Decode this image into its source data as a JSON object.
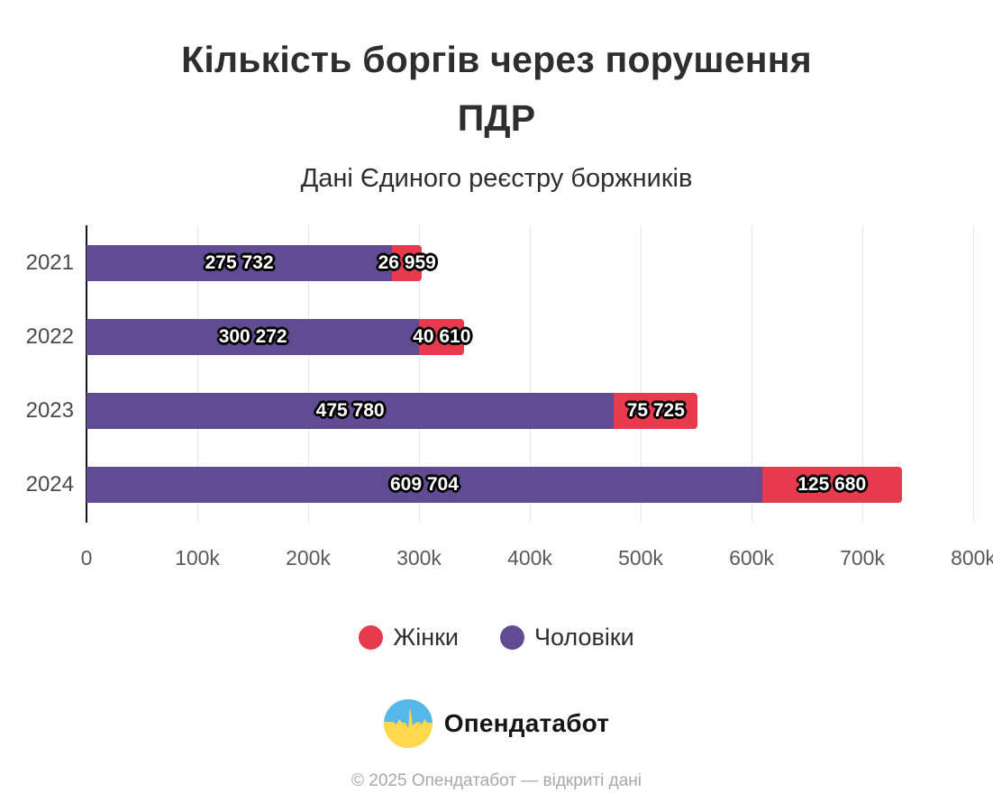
{
  "header": {
    "title": "Кількість боргів через порушення ПДР",
    "subtitle": "Дані Єдиного реєстру боржників"
  },
  "chart_data": {
    "type": "bar",
    "orientation": "horizontal",
    "stacked": true,
    "categories": [
      "2021",
      "2022",
      "2023",
      "2024"
    ],
    "series": [
      {
        "name": "Чоловіки",
        "color": "#614b93",
        "values": [
          275732,
          300272,
          475780,
          609704
        ],
        "labels": [
          "275 732",
          "300 272",
          "475 780",
          "609 704"
        ]
      },
      {
        "name": "Жінки",
        "color": "#e73a4d",
        "values": [
          26959,
          40610,
          75725,
          125680
        ],
        "labels": [
          "26 959",
          "40 610",
          "75 725",
          "125 680"
        ]
      }
    ],
    "xlim": [
      0,
      800000
    ],
    "xticks": [
      "0",
      "100k",
      "200k",
      "300k",
      "400k",
      "500k",
      "600k",
      "700k",
      "800k"
    ],
    "grid": true,
    "legend_position": "bottom",
    "bar_label_style": "white-with-black-outline"
  },
  "legend": {
    "items": [
      {
        "label": "Жінки",
        "color": "#e73a4d"
      },
      {
        "label": "Чоловіки",
        "color": "#614b93"
      }
    ]
  },
  "footer": {
    "brand": "Опендатабот",
    "copyright": "© 2025 Опендатабот — відкриті дані"
  },
  "colors": {
    "women": "#e73a4d",
    "men": "#614b93",
    "gridline": "#e7e7e7",
    "axis": "#161616",
    "logo_blue": "#56b8ea",
    "logo_yellow": "#ffd84e"
  }
}
